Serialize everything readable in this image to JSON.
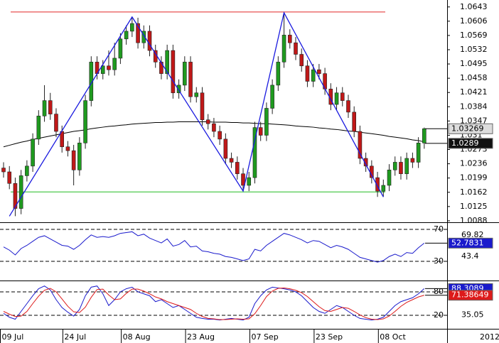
{
  "chart_data": [
    {
      "type": "candlestick",
      "categories": [
        "09 Jul",
        null,
        null,
        null,
        null,
        null,
        null,
        null,
        null,
        null,
        null,
        "24 Jul",
        null,
        null,
        null,
        null,
        null,
        null,
        null,
        null,
        null,
        "08 Aug",
        null,
        null,
        null,
        null,
        null,
        null,
        null,
        null,
        null,
        null,
        "23 Aug",
        null,
        null,
        null,
        null,
        null,
        null,
        null,
        null,
        null,
        null,
        "07 Sep",
        null,
        null,
        null,
        null,
        null,
        null,
        null,
        null,
        null,
        null,
        "23 Sep",
        null,
        null,
        null,
        null,
        null,
        null,
        null,
        null,
        null,
        null,
        "08 Oct",
        null,
        null,
        null,
        null,
        null,
        null,
        null
      ],
      "open": [
        1.0225,
        1.0215,
        1.0185,
        1.012,
        1.0205,
        1.023,
        1.03,
        1.036,
        1.04,
        1.0365,
        1.032,
        1.028,
        1.027,
        1.022,
        1.029,
        1.04,
        1.05,
        1.047,
        1.049,
        1.048,
        1.051,
        1.056,
        1.058,
        1.06,
        1.055,
        1.058,
        1.053,
        1.05,
        1.047,
        1.053,
        1.042,
        1.044,
        1.05,
        1.041,
        1.042,
        1.035,
        1.034,
        1.032,
        1.03,
        1.025,
        1.024,
        1.021,
        1.018,
        1.02,
        1.033,
        1.031,
        1.038,
        1.044,
        1.05,
        1.057,
        1.055,
        1.052,
        1.049,
        1.045,
        1.048,
        1.047,
        1.043,
        1.039,
        1.042,
        1.04,
        1.037,
        1.032,
        1.025,
        1.023,
        1.02,
        1.0165,
        1.018,
        1.022,
        1.024,
        1.021,
        1.025,
        1.024,
        1.029
      ],
      "high": [
        1.024,
        1.023,
        1.02,
        1.022,
        1.0245,
        1.0315,
        1.0375,
        1.044,
        1.042,
        1.038,
        1.0335,
        1.0295,
        1.0285,
        1.0305,
        1.0415,
        1.0515,
        1.0515,
        1.0505,
        1.053,
        1.055,
        1.0575,
        1.0595,
        1.0615,
        1.0615,
        1.0595,
        1.0595,
        1.0545,
        1.0515,
        1.0545,
        1.0545,
        1.0455,
        1.0515,
        1.0515,
        1.0435,
        1.0435,
        1.0365,
        1.0355,
        1.0335,
        1.0315,
        1.0265,
        1.0255,
        1.0225,
        1.0215,
        1.0345,
        1.0345,
        1.0395,
        1.0455,
        1.0515,
        1.0625,
        1.0585,
        1.0565,
        1.0535,
        1.0505,
        1.0495,
        1.0495,
        1.0485,
        1.0445,
        1.0435,
        1.0435,
        1.0415,
        1.0385,
        1.0335,
        1.0265,
        1.0245,
        1.0215,
        1.0195,
        1.0235,
        1.0255,
        1.0255,
        1.0265,
        1.0265,
        1.0305,
        1.033
      ],
      "low": [
        1.02,
        1.017,
        1.01,
        1.0105,
        1.019,
        1.0215,
        1.0285,
        1.0345,
        1.035,
        1.0305,
        1.0265,
        1.0255,
        1.018,
        1.0205,
        1.0275,
        1.0385,
        1.0455,
        1.0455,
        1.0465,
        1.0465,
        1.0495,
        1.0545,
        1.0565,
        1.0535,
        1.0535,
        1.0515,
        1.0485,
        1.0455,
        1.0455,
        1.0405,
        1.0405,
        1.0425,
        1.0395,
        1.0395,
        1.0335,
        1.0325,
        1.0305,
        1.0285,
        1.0235,
        1.0225,
        1.0195,
        1.0165,
        1.0165,
        1.0185,
        1.0295,
        1.0295,
        1.0365,
        1.0425,
        1.0485,
        1.0535,
        1.0505,
        1.0475,
        1.0435,
        1.0435,
        1.0455,
        1.0415,
        1.0375,
        1.0375,
        1.0385,
        1.0355,
        1.0305,
        1.0235,
        1.0215,
        1.0185,
        1.015,
        1.015,
        1.0165,
        1.0205,
        1.0195,
        1.0195,
        1.0225,
        1.0225,
        1.0275
      ],
      "close": [
        1.0215,
        1.0185,
        1.012,
        1.0205,
        1.023,
        1.03,
        1.036,
        1.04,
        1.0365,
        1.032,
        1.028,
        1.027,
        1.022,
        1.029,
        1.04,
        1.05,
        1.047,
        1.049,
        1.048,
        1.051,
        1.056,
        1.058,
        1.06,
        1.055,
        1.058,
        1.053,
        1.05,
        1.047,
        1.053,
        1.042,
        1.044,
        1.05,
        1.041,
        1.042,
        1.035,
        1.034,
        1.032,
        1.03,
        1.025,
        1.024,
        1.021,
        1.018,
        1.02,
        1.033,
        1.031,
        1.038,
        1.044,
        1.05,
        1.057,
        1.055,
        1.052,
        1.049,
        1.045,
        1.048,
        1.047,
        1.043,
        1.039,
        1.042,
        1.04,
        1.037,
        1.032,
        1.025,
        1.023,
        1.02,
        1.0165,
        1.018,
        1.022,
        1.024,
        1.021,
        1.025,
        1.024,
        1.029,
        1.0327
      ],
      "up_color": "#1f9a1f",
      "down_color": "#c01818",
      "moving_average": {
        "color": "#000000",
        "values": [
          1.028,
          1.0284,
          1.0288,
          1.0292,
          1.0295,
          1.0299,
          1.0302,
          1.0305,
          1.0308,
          1.0311,
          1.0314,
          1.0317,
          1.032,
          1.0322,
          1.0324,
          1.0327,
          1.0329,
          1.0331,
          1.0333,
          1.0334,
          1.0336,
          1.0337,
          1.0339,
          1.034,
          1.0341,
          1.0342,
          1.0343,
          1.0343,
          1.0344,
          1.0344,
          1.0345,
          1.0345,
          1.0345,
          1.0345,
          1.0345,
          1.0345,
          1.0344,
          1.0344,
          1.0344,
          1.0343,
          1.0343,
          1.0342,
          1.0342,
          1.0341,
          1.034,
          1.034,
          1.0339,
          1.0338,
          1.0337,
          1.0336,
          1.0334,
          1.0333,
          1.0332,
          1.0331,
          1.0329,
          1.0328,
          1.0326,
          1.0325,
          1.0323,
          1.0321,
          1.032,
          1.0318,
          1.0316,
          1.0314,
          1.0312,
          1.031,
          1.0307,
          1.0305,
          1.0303,
          1.0301,
          1.0298,
          1.0296,
          1.0293
        ]
      },
      "zigzag": {
        "color": "#1a1adf",
        "x": [
          1,
          22,
          41,
          48,
          65
        ],
        "y": [
          1.01,
          1.0617,
          1.0165,
          1.0628,
          1.015
        ]
      },
      "levels": [
        {
          "value": 1.063,
          "color": "#e02828"
        },
        {
          "value": 1.0163,
          "color": "#22bb22"
        }
      ],
      "ylim": [
        1.0086,
        1.0661
      ],
      "yticks": [
        1.0643,
        1.0606,
        1.0569,
        1.0532,
        1.0495,
        1.0458,
        1.0421,
        1.0384,
        1.0347,
        1.031,
        1.0273,
        1.0236,
        1.0199,
        1.0162,
        1.0125,
        1.0088
      ],
      "price_labels": [
        {
          "value": 1.03269,
          "background": "#dddddd",
          "text_color": "#000000"
        },
        {
          "value": 1.0289,
          "background": "#111111",
          "text_color": "#ffffff"
        }
      ],
      "year_label": "2012"
    },
    {
      "type": "line",
      "ylim": [
        7.8,
        74.4
      ],
      "yticks": [
        70,
        30
      ],
      "scale_labels": [
        69.82,
        43.4
      ],
      "series": [
        {
          "color": "#1a1acc",
          "values": [
            48,
            44,
            38,
            46,
            50,
            55,
            60,
            62,
            58,
            54,
            50,
            49,
            45,
            50,
            57,
            63,
            60,
            61,
            60,
            62,
            65,
            66,
            67,
            62,
            64,
            59,
            56,
            53,
            58,
            49,
            51,
            56,
            48,
            49,
            43,
            42,
            40,
            39,
            36,
            35,
            33,
            31,
            33,
            45,
            43,
            50,
            55,
            60,
            65,
            63,
            60,
            57,
            53,
            56,
            55,
            51,
            47,
            50,
            48,
            45,
            40,
            35,
            33,
            31,
            29,
            31,
            36,
            39,
            36,
            41,
            40,
            47,
            52.7831
          ]
        }
      ]
    },
    {
      "type": "line",
      "ylim": [
        -12.7,
        103.6
      ],
      "yticks": [
        80,
        20
      ],
      "scale_labels": [
        35.05
      ],
      "series": [
        {
          "color": "#1a1acc",
          "values": [
            25,
            15,
            10,
            30,
            50,
            70,
            88,
            95,
            85,
            60,
            40,
            28,
            18,
            35,
            70,
            92,
            95,
            75,
            45,
            60,
            80,
            88,
            92,
            80,
            75,
            70,
            55,
            60,
            50,
            40,
            45,
            35,
            25,
            15,
            12,
            10,
            10,
            8,
            10,
            12,
            10,
            8,
            15,
            50,
            70,
            85,
            92,
            90,
            88,
            85,
            80,
            70,
            55,
            40,
            30,
            25,
            35,
            45,
            40,
            30,
            20,
            12,
            10,
            8,
            10,
            15,
            30,
            45,
            55,
            60,
            65,
            75,
            88.3089
          ]
        },
        {
          "color": "#dd1a1a",
          "values": [
            30,
            23,
            17,
            18,
            30,
            50,
            69,
            84,
            89,
            80,
            62,
            43,
            29,
            27,
            41,
            66,
            86,
            87,
            72,
            60,
            62,
            76,
            87,
            87,
            82,
            75,
            67,
            62,
            55,
            50,
            45,
            40,
            35,
            25,
            17,
            12,
            11,
            9,
            9,
            10,
            11,
            10,
            11,
            24,
            45,
            68,
            82,
            89,
            90,
            88,
            84,
            78,
            68,
            55,
            42,
            32,
            30,
            35,
            40,
            38,
            30,
            21,
            14,
            10,
            9,
            11,
            18,
            30,
            43,
            53,
            60,
            67,
            71.38649
          ]
        }
      ]
    }
  ]
}
